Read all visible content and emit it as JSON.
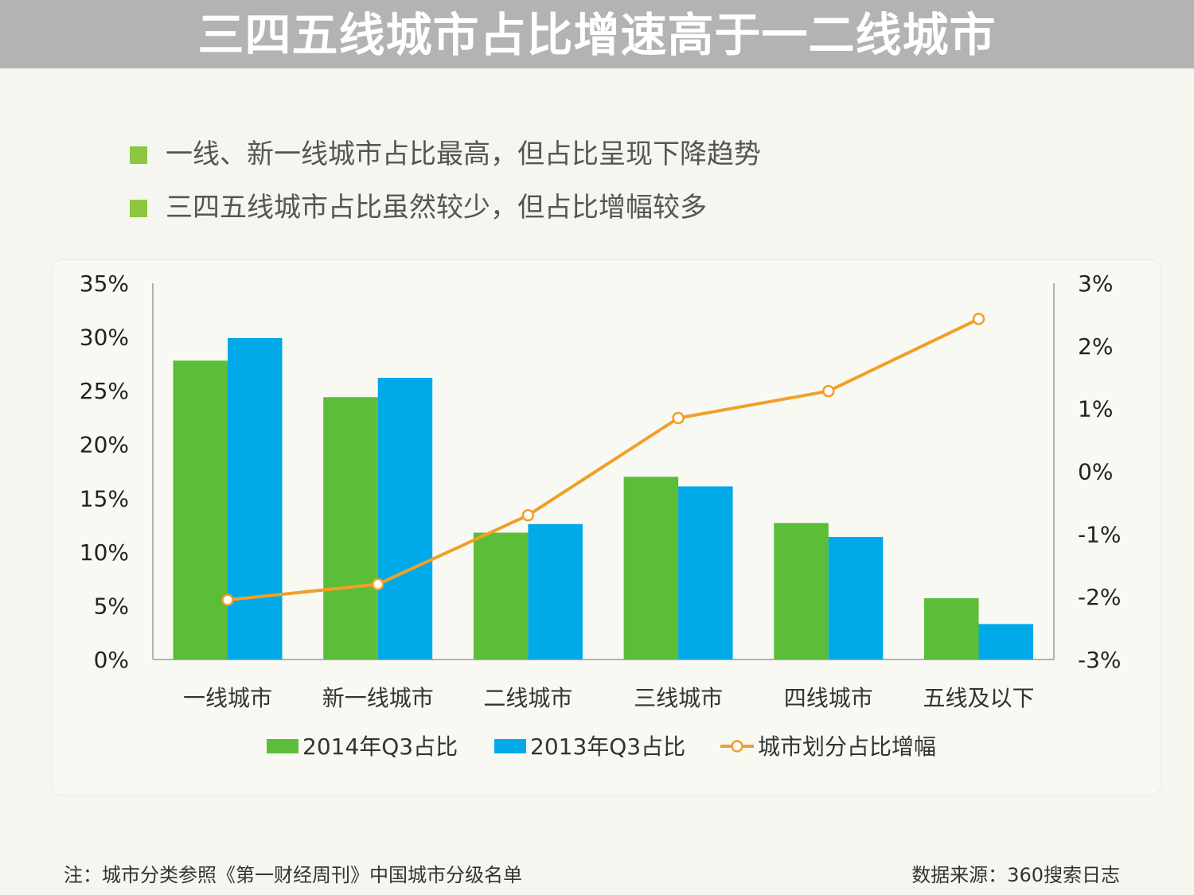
{
  "title": "三四五线城市占比增速高于一二线城市",
  "bullets": [
    "一线、新一线城市占比最高，但占比呈现下降趋势",
    "三四五线城市占比虽然较少，但占比增幅较多"
  ],
  "chart_data": {
    "type": "bar",
    "categories": [
      "一线城市",
      "新一线城市",
      "二线城市",
      "三线城市",
      "四线城市",
      "五线及以下"
    ],
    "series": [
      {
        "name": "2014年Q3占比",
        "kind": "bar",
        "axis": "left",
        "color": "#5cbd38",
        "values": [
          27.8,
          24.4,
          11.8,
          17.0,
          12.7,
          5.7
        ]
      },
      {
        "name": "2013年Q3占比",
        "kind": "bar",
        "axis": "left",
        "color": "#00a9e8",
        "values": [
          29.9,
          26.2,
          12.6,
          16.1,
          11.4,
          3.3
        ]
      },
      {
        "name": "城市划分占比增幅",
        "kind": "line",
        "axis": "right",
        "color": "#f0a028",
        "values": [
          -2.05,
          -1.8,
          -0.7,
          0.85,
          1.28,
          2.43
        ]
      }
    ],
    "left_axis": {
      "min": 0,
      "max": 35,
      "step": 5,
      "tick_labels": [
        "0%",
        "5%",
        "10%",
        "15%",
        "20%",
        "25%",
        "30%",
        "35%"
      ]
    },
    "right_axis": {
      "min": -3,
      "max": 3,
      "step": 1,
      "tick_labels": [
        "-3%",
        "-2%",
        "-1%",
        "0%",
        "1%",
        "2%",
        "3%"
      ]
    },
    "legend_position": "bottom"
  },
  "footer": {
    "note": "注：城市分类参照《第一财经周刊》中国城市分级名单",
    "source": "数据来源：360搜索日志"
  }
}
